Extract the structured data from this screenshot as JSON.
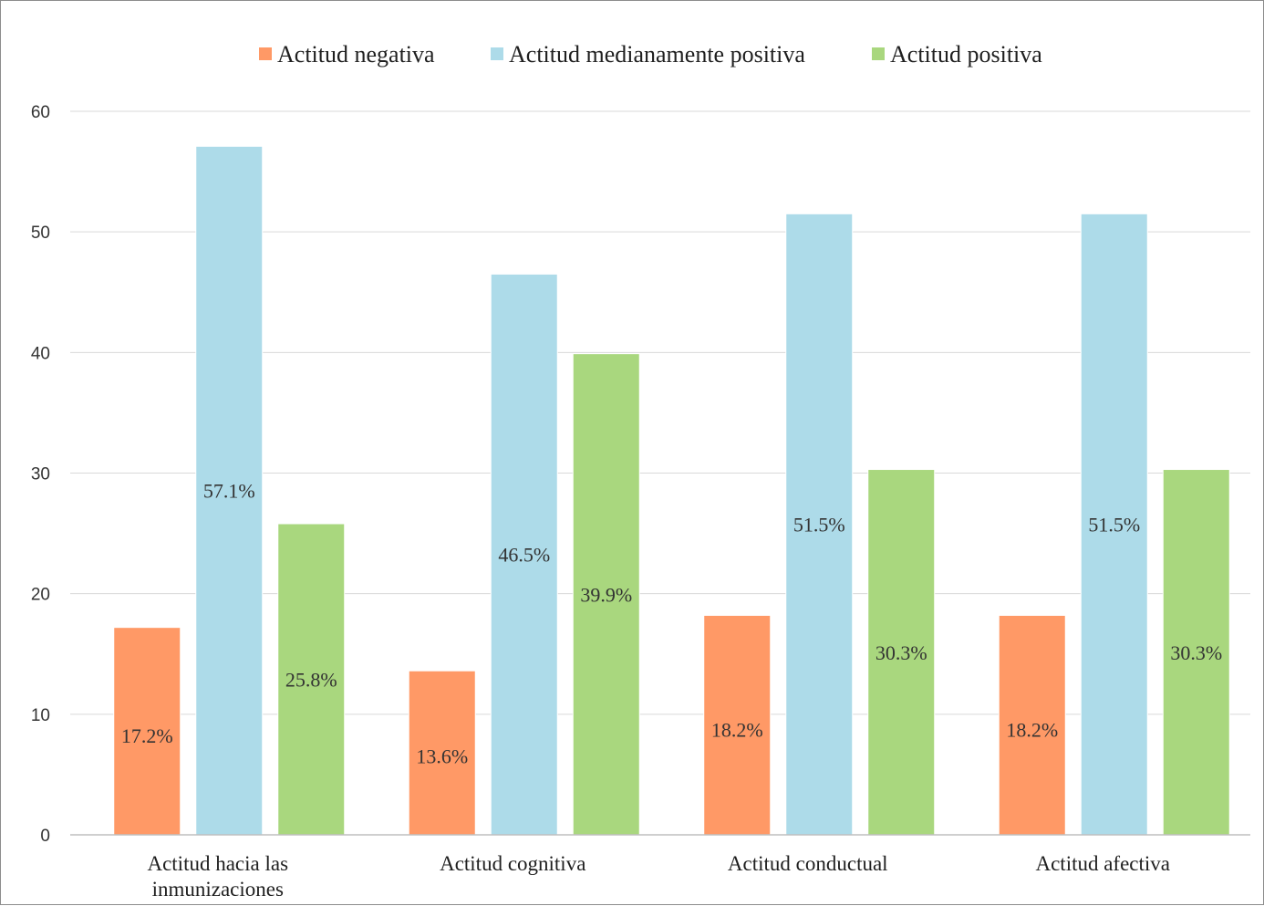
{
  "chart_data": {
    "type": "bar",
    "title": "",
    "xlabel": "",
    "ylabel": "",
    "categories": [
      [
        "Actitud hacia las",
        "inmunizaciones"
      ],
      [
        "Actitud cognitiva"
      ],
      [
        "Actitud conductual"
      ],
      [
        "Actitud afectiva"
      ]
    ],
    "series": [
      {
        "name": "Actitud negativa",
        "color": "#FF9966",
        "values": [
          17.2,
          13.6,
          18.2,
          18.2
        ],
        "labels": [
          "17.2%",
          "13.6%",
          "18.2%",
          "18.2%"
        ]
      },
      {
        "name": "Actitud medianamente positiva",
        "color": "#ADDBE9",
        "values": [
          57.1,
          46.5,
          51.5,
          51.5
        ],
        "labels": [
          "57.1%",
          "46.5%",
          "51.5%",
          "51.5%"
        ]
      },
      {
        "name": "Actitud positiva",
        "color": "#A9D77E",
        "values": [
          25.8,
          39.9,
          30.3,
          30.3
        ],
        "labels": [
          "25.8%",
          "39.9%",
          "30.3%",
          "30.3%"
        ]
      }
    ],
    "ylim": [
      0,
      60
    ],
    "yticks": [
      0,
      10,
      20,
      30,
      40,
      50,
      60
    ],
    "grid": true,
    "legend_position": "top-center"
  }
}
